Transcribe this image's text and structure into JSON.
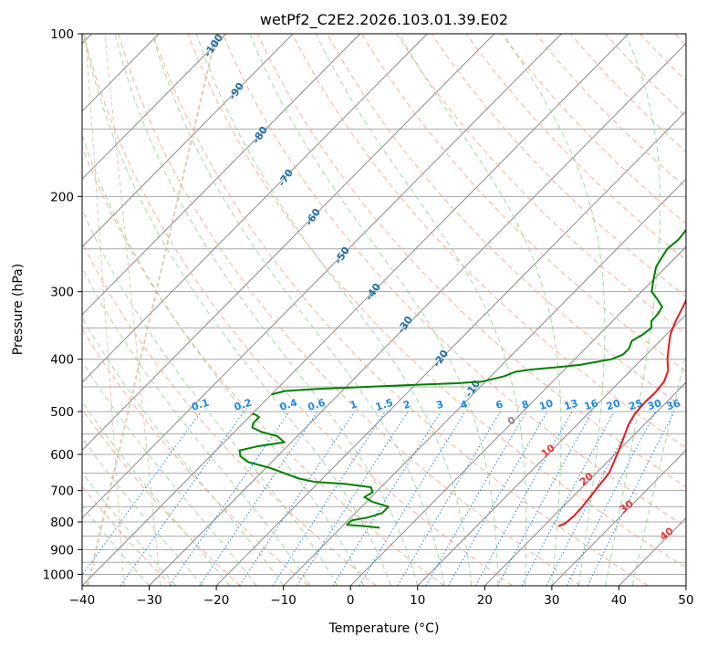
{
  "chart_data": {
    "type": "line",
    "title": "wetPf2_C2E2.2026.103.01.39.E02",
    "xlabel": "Temperature (°C)",
    "ylabel": "Pressure (hPa)",
    "xlim": [
      -40,
      50
    ],
    "ylim": [
      1050,
      100
    ],
    "y_scale": "log",
    "grid": true,
    "x_ticks": [
      -40,
      -30,
      -20,
      -10,
      0,
      10,
      20,
      30,
      40,
      50
    ],
    "y_ticks": [
      100,
      200,
      300,
      400,
      500,
      600,
      700,
      800,
      900,
      1000
    ],
    "series": [
      {
        "color": "#e41a1c",
        "points": [
          [
            22.2,
            815
          ],
          [
            22.8,
            805
          ],
          [
            23.0,
            780
          ],
          [
            22.9,
            750
          ],
          [
            22.6,
            720
          ],
          [
            22.3,
            690
          ],
          [
            21.9,
            650
          ],
          [
            21.0,
            620
          ],
          [
            20.0,
            590
          ],
          [
            18.9,
            560
          ],
          [
            17.7,
            530
          ],
          [
            17.0,
            505
          ],
          [
            16.8,
            480
          ],
          [
            16.9,
            460
          ],
          [
            16.6,
            440
          ],
          [
            15.6,
            420
          ],
          [
            13.8,
            400
          ],
          [
            12.2,
            380
          ],
          [
            10.6,
            360
          ],
          [
            9.4,
            340
          ],
          [
            8.4,
            320
          ],
          [
            7.2,
            300
          ],
          [
            5.8,
            280
          ],
          [
            4.2,
            260
          ],
          [
            2.9,
            240
          ],
          [
            1.3,
            220
          ],
          [
            0.0,
            200
          ],
          [
            -0.4,
            190
          ],
          [
            0.6,
            180
          ],
          [
            2.3,
            170
          ],
          [
            4.2,
            162
          ],
          [
            6.0,
            156
          ],
          [
            7.6,
            152
          ],
          [
            8.6,
            145
          ],
          [
            8.9,
            138
          ],
          [
            8.9,
            130
          ],
          [
            8.7,
            123
          ],
          [
            9.0,
            118
          ],
          [
            10.3,
            114
          ],
          [
            11.7,
            110
          ],
          [
            12.8,
            106
          ],
          [
            13.4,
            102
          ],
          [
            13.6,
            100
          ]
        ]
      },
      {
        "color": "#008000",
        "points": [
          [
            -4.2,
            820
          ],
          [
            -6.5,
            815
          ],
          [
            -9.5,
            810
          ],
          [
            -9.5,
            795
          ],
          [
            -7.5,
            785
          ],
          [
            -6.0,
            770
          ],
          [
            -6.0,
            750
          ],
          [
            -9.0,
            735
          ],
          [
            -11.0,
            720
          ],
          [
            -10.5,
            705
          ],
          [
            -11.5,
            690
          ],
          [
            -16.0,
            680
          ],
          [
            -20.5,
            675
          ],
          [
            -23.5,
            665
          ],
          [
            -26.5,
            650
          ],
          [
            -29.5,
            635
          ],
          [
            -33.5,
            620
          ],
          [
            -35.5,
            605
          ],
          [
            -36.5,
            590
          ],
          [
            -34.5,
            580
          ],
          [
            -31.0,
            570
          ],
          [
            -33.0,
            555
          ],
          [
            -36.0,
            545
          ],
          [
            -38.0,
            535
          ],
          [
            -38.5,
            525
          ],
          [
            -38.5,
            512
          ],
          [
            -39.5,
            506
          ],
          [
            -40.0,
            505
          ]
        ]
      },
      {
        "color": "#008000",
        "points": [
          [
            -40.0,
            465
          ],
          [
            -38.5,
            458
          ],
          [
            -34.0,
            454
          ],
          [
            -27.0,
            450
          ],
          [
            -20.0,
            446
          ],
          [
            -14.0,
            443
          ],
          [
            -10.5,
            440
          ],
          [
            -8.0,
            430
          ],
          [
            -7.0,
            422
          ],
          [
            -5.0,
            418
          ],
          [
            -1.5,
            414
          ],
          [
            1.5,
            410
          ],
          [
            3.5,
            405
          ],
          [
            5.5,
            400
          ],
          [
            6.5,
            392
          ],
          [
            6.5,
            382
          ],
          [
            5.8,
            370
          ],
          [
            6.5,
            360
          ],
          [
            6.8,
            350
          ],
          [
            5.8,
            340
          ],
          [
            5.7,
            330
          ],
          [
            5.3,
            320
          ],
          [
            3.5,
            310
          ],
          [
            1.5,
            300
          ],
          [
            0.5,
            290
          ],
          [
            -0.5,
            280
          ],
          [
            -1.5,
            270
          ],
          [
            -2.0,
            260
          ],
          [
            -2.5,
            250
          ],
          [
            -2.2,
            240
          ],
          [
            -2.5,
            230
          ],
          [
            -2.5,
            220
          ],
          [
            -2.5,
            210
          ],
          [
            -2.5,
            200
          ],
          [
            -2.5,
            190
          ],
          [
            -3.0,
            182
          ],
          [
            -4.5,
            176
          ],
          [
            -6.5,
            170
          ],
          [
            -9.5,
            165
          ],
          [
            -12.5,
            160
          ],
          [
            -15.0,
            155
          ],
          [
            -16.5,
            150
          ],
          [
            -13.5,
            147
          ],
          [
            -11.0,
            145
          ],
          [
            -10.5,
            140
          ],
          [
            -10.5,
            136
          ],
          [
            -9.0,
            132
          ],
          [
            -8.0,
            127
          ],
          [
            -7.5,
            122
          ],
          [
            -7.5,
            118
          ],
          [
            -9.0,
            114
          ],
          [
            -12.0,
            110
          ],
          [
            -14.5,
            107
          ],
          [
            -16.5,
            104
          ],
          [
            -17.5,
            100
          ]
        ]
      }
    ],
    "mixing_ratio_labels": [
      "0.1",
      "0.2",
      "0.4",
      "0.6",
      "1",
      "1.5",
      "2",
      "3",
      "4",
      "6",
      "8",
      "10",
      "13",
      "16",
      "20",
      "25",
      "30",
      "36"
    ],
    "moist_adiabat_labels": [
      "-100",
      "-90",
      "-80",
      "-70",
      "-60",
      "-50",
      "-40",
      "-30",
      "-20",
      "-10"
    ],
    "dry_adiabat_labels": [
      "0",
      "10",
      "20",
      "30",
      "40"
    ],
    "colors": {
      "mixing_ratio": "#1e88e5",
      "moist_adiabat": "#1f6fa8",
      "dry_adiabat_warm": "#e53935",
      "dry_adiabat_zero": "#888888",
      "isotherm": "#8a8a8a",
      "isobar": "#a8a8a8",
      "dry_adiabat_lines": "#f4a582",
      "moist_adiabat_lines": "#8fcf8f",
      "cold_curves": "#c9ab86"
    }
  }
}
